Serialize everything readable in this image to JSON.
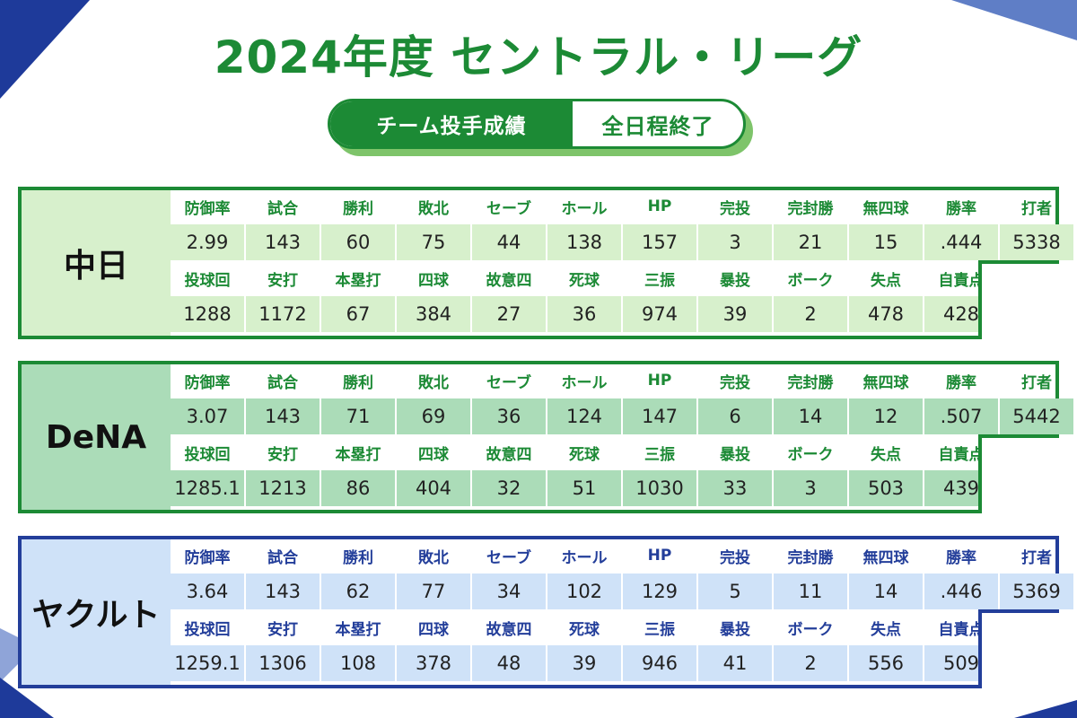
{
  "title": "2024年度 セントラル・リーグ",
  "badge": {
    "left": "チーム投手成績",
    "right": "全日程終了"
  },
  "colors": {
    "green": "#1c8a35",
    "blue": "#233e9a",
    "team1_bg": "#d7f0cc",
    "team2_bg": "#abdcb8",
    "team3_bg": "#cfe2f8"
  },
  "headers_row1": [
    "防御率",
    "試合",
    "勝利",
    "敗北",
    "セーブ",
    "ホール",
    "HP",
    "完投",
    "完封勝",
    "無四球",
    "勝率",
    "打者"
  ],
  "headers_row2": [
    "投球回",
    "安打",
    "本塁打",
    "四球",
    "故意四",
    "死球",
    "三振",
    "暴投",
    "ボーク",
    "失点",
    "自責点"
  ],
  "teams": [
    {
      "name": "中日",
      "row1": [
        "2.99",
        "143",
        "60",
        "75",
        "44",
        "138",
        "157",
        "3",
        "21",
        "15",
        ".444",
        "5338"
      ],
      "row2": [
        "1288",
        "1172",
        "67",
        "384",
        "27",
        "36",
        "974",
        "39",
        "2",
        "478",
        "428"
      ]
    },
    {
      "name": "DeNA",
      "row1": [
        "3.07",
        "143",
        "71",
        "69",
        "36",
        "124",
        "147",
        "6",
        "14",
        "12",
        ".507",
        "5442"
      ],
      "row2": [
        "1285.1",
        "1213",
        "86",
        "404",
        "32",
        "51",
        "1030",
        "33",
        "3",
        "503",
        "439"
      ]
    },
    {
      "name": "ヤクルト",
      "row1": [
        "3.64",
        "143",
        "62",
        "77",
        "34",
        "102",
        "129",
        "5",
        "11",
        "14",
        ".446",
        "5369"
      ],
      "row2": [
        "1259.1",
        "1306",
        "108",
        "378",
        "48",
        "39",
        "946",
        "41",
        "2",
        "556",
        "509"
      ]
    }
  ]
}
